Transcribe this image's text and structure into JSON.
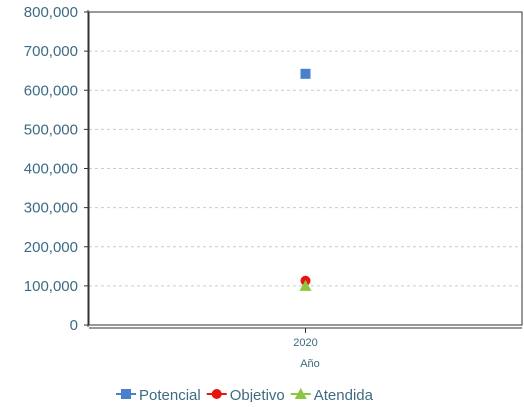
{
  "chart_data": {
    "type": "scatter",
    "title": "",
    "xlabel": "Año",
    "ylabel": "",
    "categories": [
      "2020"
    ],
    "ylim": [
      0,
      800000
    ],
    "yticks": [
      0,
      100000,
      200000,
      300000,
      400000,
      500000,
      600000,
      700000,
      800000
    ],
    "ytick_labels": [
      "0",
      "100,000",
      "200,000",
      "300,000",
      "400,000",
      "500,000",
      "600,000",
      "700,000",
      "800,000"
    ],
    "grid": true,
    "legend_position": "bottom",
    "series": [
      {
        "name": "Potencial",
        "values": [
          642000
        ],
        "color": "#4a7fcb",
        "marker": "square"
      },
      {
        "name": "Objetivo",
        "values": [
          113000
        ],
        "color": "#e8140f",
        "marker": "circle"
      },
      {
        "name": "Atendida",
        "values": [
          100000
        ],
        "color": "#8cc63e",
        "marker": "triangle"
      }
    ]
  },
  "colors": {
    "axis_text": "#3d6b82",
    "grid": "#cccccc",
    "axis": "#333333"
  }
}
